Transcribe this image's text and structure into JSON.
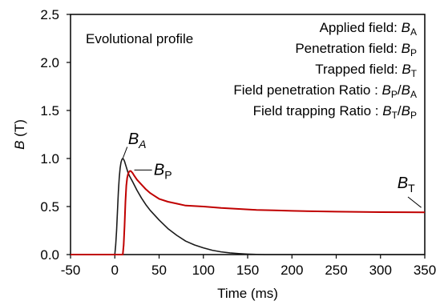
{
  "chart_data": {
    "type": "line",
    "xlabel": "Time (ms)",
    "ylabel_italic": "B",
    "ylabel_rest": " (T)",
    "xlim": [
      -50,
      350
    ],
    "ylim": [
      0,
      2.5
    ],
    "xticks": [
      "-50",
      "0",
      "50",
      "100",
      "150",
      "200",
      "250",
      "300",
      "350"
    ],
    "yticks": [
      "0.0",
      "0.5",
      "1.0",
      "1.5",
      "2.0",
      "2.5"
    ],
    "grid": false,
    "inset_title": "Evolutional profile",
    "annotations": [
      {
        "main": "Applied field: ",
        "var": "B",
        "sub": "A",
        "tail": ""
      },
      {
        "main": "Penetration field: ",
        "var": "B",
        "sub": "P",
        "tail": ""
      },
      {
        "main": "Trapped field: ",
        "var": "B",
        "sub": "T",
        "tail": ""
      },
      {
        "main": "Field penetration Ratio : ",
        "var": "B",
        "sub": "P",
        "tail": "/",
        "var2": "B",
        "sub2": "A"
      },
      {
        "main": "Field trapping Ratio : ",
        "var": "B",
        "sub": "T",
        "tail": "/",
        "var2": "B",
        "sub2": "P"
      }
    ],
    "curve_labels": [
      {
        "var": "B",
        "sub": "A",
        "italic_sub": true,
        "x": 15,
        "y": 1.15,
        "pointer": [
          [
            14,
            1.12
          ],
          [
            9,
            1.0
          ]
        ]
      },
      {
        "var": "B",
        "sub": "P",
        "italic_sub": false,
        "x": 44,
        "y": 0.83,
        "pointer": [
          [
            42,
            0.88
          ],
          [
            22,
            0.88
          ]
        ]
      },
      {
        "var": "B",
        "sub": "T",
        "italic_sub": false,
        "x": 319,
        "y": 0.69,
        "pointer": [
          [
            331,
            0.6
          ],
          [
            346,
            0.49
          ]
        ]
      }
    ],
    "series": [
      {
        "name": "B_A",
        "color": "#1a1a1a",
        "x": [
          -50,
          0,
          1,
          2,
          3,
          4,
          5,
          6,
          7,
          8,
          9,
          10,
          11,
          12,
          13,
          14,
          15,
          17,
          20,
          25,
          30,
          35,
          40,
          50,
          60,
          70,
          80,
          90,
          100,
          110,
          120,
          130,
          140,
          150,
          160,
          170,
          350
        ],
        "y": [
          0.0,
          0.0,
          0.1,
          0.25,
          0.45,
          0.65,
          0.8,
          0.9,
          0.96,
          0.99,
          1.0,
          0.99,
          0.97,
          0.94,
          0.91,
          0.88,
          0.85,
          0.81,
          0.76,
          0.67,
          0.59,
          0.52,
          0.46,
          0.36,
          0.27,
          0.2,
          0.14,
          0.1,
          0.07,
          0.045,
          0.028,
          0.017,
          0.01,
          0.005,
          0.002,
          0.0,
          0.0
        ]
      },
      {
        "name": "B_P",
        "color": "#c00000",
        "x": [
          -50,
          9,
          10,
          11,
          12,
          13,
          14,
          15,
          16,
          17,
          18,
          20,
          22,
          25,
          30,
          35,
          40,
          45,
          50,
          60,
          70,
          80,
          90,
          100,
          120,
          140,
          160,
          180,
          200,
          250,
          300,
          350
        ],
        "y": [
          0.0,
          0.0,
          0.1,
          0.3,
          0.55,
          0.72,
          0.8,
          0.84,
          0.86,
          0.87,
          0.87,
          0.85,
          0.82,
          0.78,
          0.73,
          0.68,
          0.64,
          0.61,
          0.58,
          0.55,
          0.53,
          0.51,
          0.505,
          0.5,
          0.485,
          0.475,
          0.465,
          0.46,
          0.455,
          0.447,
          0.442,
          0.44
        ]
      }
    ]
  }
}
